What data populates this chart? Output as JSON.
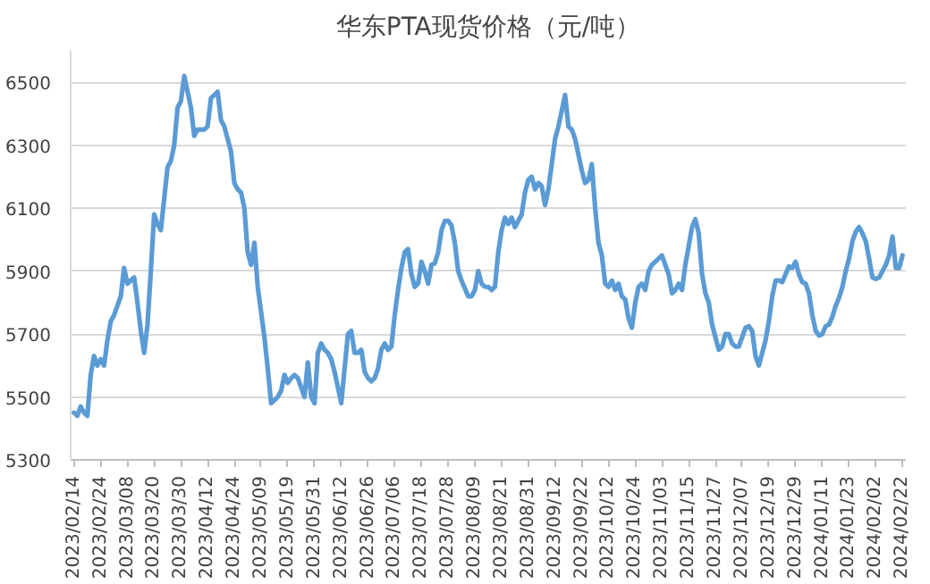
{
  "chart_data": {
    "type": "line",
    "title": "华东PTA现货价格（元/吨）",
    "categories": [
      "2023/02/14",
      null,
      null,
      null,
      null,
      null,
      null,
      null,
      "2023/02/24",
      null,
      null,
      null,
      null,
      null,
      null,
      null,
      "2023/03/08",
      null,
      null,
      null,
      null,
      null,
      null,
      null,
      "2023/03/20",
      null,
      null,
      null,
      null,
      null,
      null,
      null,
      "2023/03/30",
      null,
      null,
      null,
      null,
      null,
      null,
      null,
      "2023/04/12",
      null,
      null,
      null,
      null,
      null,
      null,
      null,
      "2023/04/24",
      null,
      null,
      null,
      null,
      null,
      null,
      null,
      "2023/05/09",
      null,
      null,
      null,
      null,
      null,
      null,
      null,
      "2023/05/19",
      null,
      null,
      null,
      null,
      null,
      null,
      null,
      "2023/05/31",
      null,
      null,
      null,
      null,
      null,
      null,
      null,
      "2023/06/12",
      null,
      null,
      null,
      null,
      null,
      null,
      null,
      "2023/06/26",
      null,
      null,
      null,
      null,
      null,
      null,
      null,
      "2023/07/06",
      null,
      null,
      null,
      null,
      null,
      null,
      null,
      "2023/07/18",
      null,
      null,
      null,
      null,
      null,
      null,
      null,
      "2023/07/28",
      null,
      null,
      null,
      null,
      null,
      null,
      null,
      "2023/08/09",
      null,
      null,
      null,
      null,
      null,
      null,
      null,
      "2023/08/21",
      null,
      null,
      null,
      null,
      null,
      null,
      null,
      "2023/08/31",
      null,
      null,
      null,
      null,
      null,
      null,
      null,
      "2023/09/12",
      null,
      null,
      null,
      null,
      null,
      null,
      null,
      "2023/09/22",
      null,
      null,
      null,
      null,
      null,
      null,
      null,
      "2023/10/12",
      null,
      null,
      null,
      null,
      null,
      null,
      null,
      "2023/10/24",
      null,
      null,
      null,
      null,
      null,
      null,
      null,
      "2023/11/03",
      null,
      null,
      null,
      null,
      null,
      null,
      null,
      "2023/11/15",
      null,
      null,
      null,
      null,
      null,
      null,
      null,
      "2023/11/27",
      null,
      null,
      null,
      null,
      null,
      null,
      null,
      "2023/12/07",
      null,
      null,
      null,
      null,
      null,
      null,
      null,
      "2023/12/19",
      null,
      null,
      null,
      null,
      null,
      null,
      null,
      "2023/12/29",
      null,
      null,
      null,
      null,
      null,
      null,
      null,
      "2024/01/11",
      null,
      null,
      null,
      null,
      null,
      null,
      null,
      "2024/01/23",
      null,
      null,
      null,
      null,
      null,
      null,
      null,
      "2024/02/02",
      null,
      null,
      null,
      null,
      null,
      null,
      null,
      "2024/02/22"
    ],
    "series": [
      {
        "color": "#5b9bd5",
        "values": [
          5450,
          5440,
          5470,
          5450,
          5440,
          5570,
          5630,
          5600,
          5620,
          5600,
          5680,
          5740,
          5760,
          5790,
          5820,
          5910,
          5860,
          5870,
          5880,
          5800,
          5710,
          5640,
          5730,
          5900,
          6080,
          6050,
          6030,
          6130,
          6230,
          6250,
          6300,
          6420,
          6440,
          6520,
          6470,
          6420,
          6330,
          6350,
          6350,
          6350,
          6360,
          6450,
          6460,
          6470,
          6380,
          6360,
          6320,
          6280,
          6180,
          6160,
          6150,
          6100,
          5960,
          5920,
          5990,
          5850,
          5770,
          5690,
          5590,
          5480,
          5490,
          5500,
          5520,
          5570,
          5545,
          5560,
          5570,
          5560,
          5530,
          5500,
          5610,
          5500,
          5480,
          5640,
          5670,
          5650,
          5640,
          5620,
          5580,
          5530,
          5480,
          5590,
          5700,
          5710,
          5640,
          5640,
          5650,
          5580,
          5560,
          5550,
          5560,
          5590,
          5650,
          5670,
          5650,
          5660,
          5760,
          5840,
          5910,
          5960,
          5970,
          5890,
          5850,
          5860,
          5930,
          5900,
          5860,
          5920,
          5925,
          5960,
          6030,
          6060,
          6060,
          6045,
          5990,
          5900,
          5870,
          5845,
          5820,
          5820,
          5840,
          5900,
          5860,
          5850,
          5850,
          5840,
          5850,
          5960,
          6030,
          6070,
          6050,
          6070,
          6040,
          6060,
          6080,
          6150,
          6190,
          6200,
          6160,
          6180,
          6170,
          6110,
          6160,
          6240,
          6320,
          6360,
          6410,
          6460,
          6360,
          6350,
          6320,
          6270,
          6220,
          6180,
          6190,
          6240,
          6100,
          5990,
          5950,
          5860,
          5850,
          5870,
          5840,
          5860,
          5820,
          5810,
          5750,
          5720,
          5800,
          5850,
          5860,
          5840,
          5900,
          5920,
          5930,
          5940,
          5950,
          5920,
          5890,
          5830,
          5840,
          5860,
          5840,
          5920,
          5980,
          6040,
          6065,
          6020,
          5890,
          5830,
          5800,
          5730,
          5690,
          5650,
          5660,
          5700,
          5700,
          5670,
          5660,
          5660,
          5690,
          5720,
          5725,
          5710,
          5630,
          5600,
          5640,
          5680,
          5740,
          5820,
          5870,
          5870,
          5865,
          5890,
          5915,
          5910,
          5930,
          5890,
          5865,
          5860,
          5830,
          5760,
          5710,
          5695,
          5700,
          5725,
          5730,
          5755,
          5790,
          5815,
          5850,
          5900,
          5940,
          5995,
          6025,
          6040,
          6020,
          5995,
          5940,
          5880,
          5875,
          5880,
          5900,
          5920,
          5950,
          6010,
          5910,
          5910,
          5950
        ]
      }
    ],
    "ylim": [
      5300,
      6600
    ],
    "yticks": [
      5300,
      5500,
      5700,
      5900,
      6100,
      6300,
      6500
    ],
    "grid": "y",
    "marker": "none",
    "line_style": "solid"
  }
}
